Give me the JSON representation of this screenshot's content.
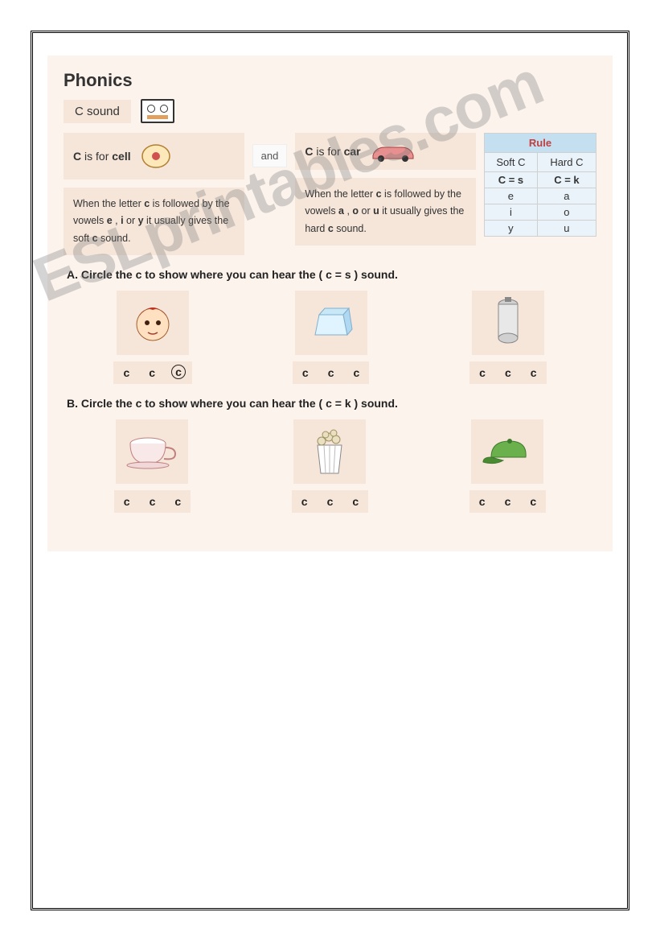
{
  "title": "Phonics",
  "sound_label": "C  sound",
  "and_label": "and",
  "cell": {
    "prefix": "C",
    "mid": " is for ",
    "word": "cell"
  },
  "car": {
    "prefix": "C",
    "mid": " is for ",
    "word": "car"
  },
  "soft_rule": "When the letter <b>c</b> is followed by the vowels <b>e</b> , <b>i</b> or <b>y</b> it usually gives the soft <b>c</b> sound.",
  "hard_rule": "When the letter <b>c</b> is followed by the vowels <b>a</b> , <b>o</b> or <b>u</b> it usually gives the hard <b>c</b> sound.",
  "rule_table": {
    "header": "Rule",
    "soft_h": "Soft C",
    "hard_h": "Hard C",
    "soft_eq": "C = s",
    "hard_eq": "C = k",
    "soft_v": [
      "e",
      "i",
      "y"
    ],
    "hard_v": [
      "a",
      "o",
      "u"
    ]
  },
  "sectionA": "A.   Circle the  c  to show where you can hear the ( c = s ) sound.",
  "sectionB": "B.   Circle the  c  to show where you can hear the  ( c = k ) sound.",
  "rowA": [
    {
      "icon": "face",
      "letters": [
        "c",
        "c",
        "c"
      ],
      "circled_index": 2
    },
    {
      "icon": "ice",
      "letters": [
        "c",
        "c",
        "c"
      ],
      "circled_index": null
    },
    {
      "icon": "tank",
      "letters": [
        "c",
        "c",
        "c"
      ],
      "circled_index": null
    }
  ],
  "rowB": [
    {
      "icon": "cup",
      "letters": [
        "c",
        "c",
        "c"
      ],
      "circled_index": null
    },
    {
      "icon": "popcorn",
      "letters": [
        "c",
        "c",
        "c"
      ],
      "circled_index": null
    },
    {
      "icon": "cap",
      "letters": [
        "c",
        "c",
        "c"
      ],
      "circled_index": null
    }
  ],
  "watermark": "ESLprintables.com",
  "colors": {
    "worksheet_bg": "#fdf3ed",
    "card_bg": "#f6e6da",
    "rule_header_bg": "#c3dff0",
    "rule_header_color": "#c04040",
    "rule_cell_bg": "#eaf3fa"
  }
}
